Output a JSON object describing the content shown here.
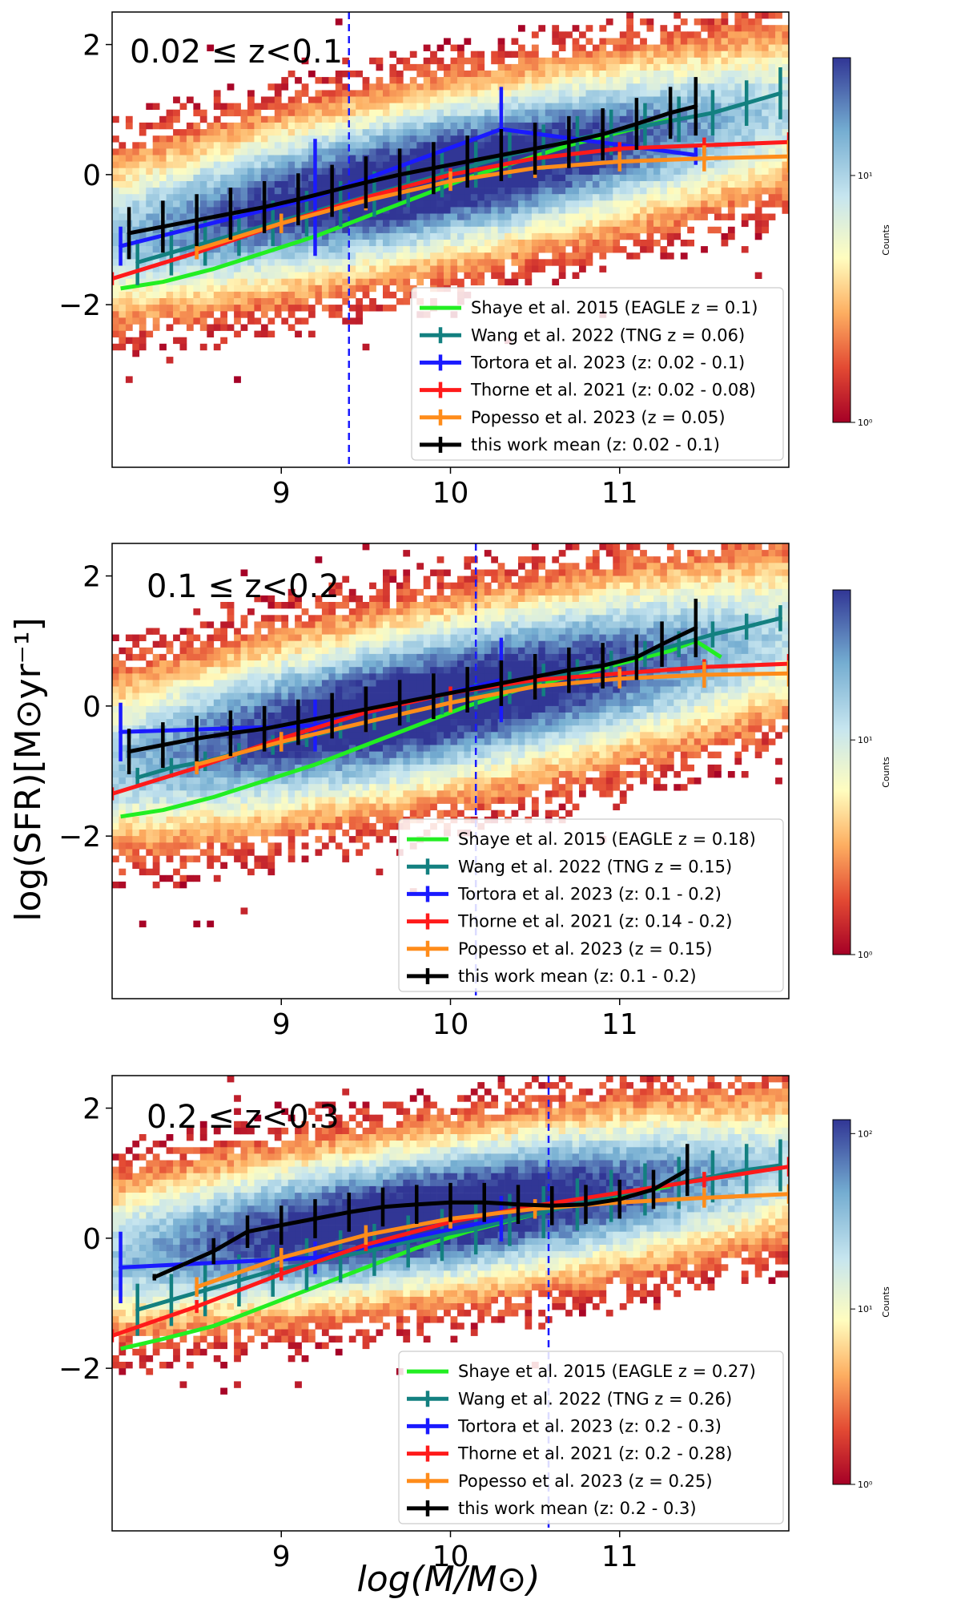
{
  "chart_data": [
    {
      "type": "scatter",
      "panel_label": "0.02 ≤ z<0.1",
      "xlim": [
        8,
        12
      ],
      "ylim": [
        -4.5,
        2.5
      ],
      "xticks": [
        9,
        10,
        11
      ],
      "yticks": [
        -2,
        0,
        2
      ],
      "xtick_labels": [
        "9",
        "10",
        "11"
      ],
      "ytick_labels": [
        "−2",
        "0",
        "2"
      ],
      "vline_x": 9.4,
      "cbar": {
        "label": "Counts",
        "ticks": [
          "10⁰",
          "10¹"
        ],
        "max": 30
      },
      "density": {
        "slope": 0.5,
        "intercept": -5.0,
        "width": 0.85
      },
      "series": [
        {
          "name": "Shaye et al. 2015 (EAGLE z = 0.1)",
          "color": "#22ee22",
          "x": [
            8.05,
            8.3,
            8.6,
            8.9,
            9.2,
            9.5,
            9.8,
            10.1,
            10.4,
            10.7,
            11.0,
            11.3
          ],
          "y": [
            -1.75,
            -1.65,
            -1.45,
            -1.2,
            -0.95,
            -0.65,
            -0.35,
            -0.05,
            0.2,
            0.45,
            0.65,
            0.85
          ],
          "err": []
        },
        {
          "name": "Wang et al. 2022 (TNG z = 0.06)",
          "color": "#138080",
          "x": [
            8.15,
            8.35,
            8.55,
            8.75,
            8.95,
            9.15,
            9.35,
            9.55,
            9.75,
            9.95,
            10.15,
            10.35,
            10.55,
            10.75,
            10.95,
            11.15,
            11.35,
            11.55,
            11.75,
            11.95
          ],
          "y": [
            -1.35,
            -1.2,
            -1.05,
            -0.9,
            -0.75,
            -0.6,
            -0.45,
            -0.3,
            -0.15,
            0.0,
            0.15,
            0.3,
            0.42,
            0.55,
            0.65,
            0.75,
            0.85,
            0.95,
            1.1,
            1.25
          ],
          "err": [
            0.35,
            0.35,
            0.35,
            0.35,
            0.35,
            0.35,
            0.35,
            0.35,
            0.35,
            0.35,
            0.35,
            0.35,
            0.35,
            0.35,
            0.35,
            0.35,
            0.35,
            0.35,
            0.35,
            0.4
          ]
        },
        {
          "name": "Tortora et al. 2023 (z: 0.02 - 0.1)",
          "color": "#1a1aff",
          "x": [
            8.05,
            9.2,
            10.3,
            11.45
          ],
          "y": [
            -1.1,
            -0.35,
            0.7,
            0.3
          ],
          "err": [
            0.3,
            0.9,
            0.65,
            0.15
          ]
        },
        {
          "name": "Thorne et al. 2021 (z: 0.02 - 0.08)",
          "color": "#ff1a1a",
          "x": [
            8.0,
            8.5,
            9.0,
            9.5,
            10.0,
            10.5,
            11.0,
            11.5,
            12.0
          ],
          "y": [
            -1.6,
            -1.2,
            -0.75,
            -0.35,
            0.0,
            0.25,
            0.4,
            0.45,
            0.5
          ],
          "err": [
            0.1,
            0.1,
            0.1,
            0.1,
            0.1,
            0.1,
            0.1,
            0.12,
            0.15
          ]
        },
        {
          "name": "Popesso et al. 2023 (z = 0.05)",
          "color": "#ff8c1a",
          "x": [
            8.5,
            9.0,
            9.5,
            10.0,
            10.5,
            11.0,
            11.5,
            12.0
          ],
          "y": [
            -1.15,
            -0.75,
            -0.4,
            -0.1,
            0.1,
            0.2,
            0.25,
            0.28
          ],
          "err": [
            0.15,
            0.15,
            0.15,
            0.15,
            0.15,
            0.15,
            0.2,
            0.25
          ]
        },
        {
          "name": "this work mean (z: 0.02 - 0.1)",
          "color": "#000000",
          "x": [
            8.1,
            8.3,
            8.5,
            8.7,
            8.9,
            9.1,
            9.3,
            9.5,
            9.7,
            9.9,
            10.1,
            10.3,
            10.5,
            10.7,
            10.9,
            11.1,
            11.3,
            11.45
          ],
          "y": [
            -0.9,
            -0.8,
            -0.7,
            -0.6,
            -0.5,
            -0.38,
            -0.25,
            -0.12,
            0.0,
            0.1,
            0.2,
            0.3,
            0.4,
            0.5,
            0.62,
            0.78,
            0.95,
            1.05
          ],
          "err": [
            0.4,
            0.4,
            0.4,
            0.4,
            0.4,
            0.4,
            0.4,
            0.4,
            0.4,
            0.4,
            0.4,
            0.4,
            0.4,
            0.4,
            0.4,
            0.4,
            0.4,
            0.45
          ]
        }
      ]
    },
    {
      "type": "scatter",
      "panel_label": "0.1 ≤ z<0.2",
      "xlim": [
        8,
        12
      ],
      "ylim": [
        -4.5,
        2.5
      ],
      "xticks": [
        9,
        10,
        11
      ],
      "yticks": [
        -2,
        0,
        2
      ],
      "xtick_labels": [
        "9",
        "10",
        "11"
      ],
      "ytick_labels": [
        "−2",
        "0",
        "2"
      ],
      "vline_x": 10.15,
      "cbar": {
        "label": "Counts",
        "ticks": [
          "10⁰",
          "10¹"
        ],
        "max": 50
      },
      "density": {
        "slope": 0.5,
        "intercept": -4.9,
        "width": 0.9
      },
      "series": [
        {
          "name": "Shaye et al. 2015 (EAGLE z = 0.18)",
          "color": "#22ee22",
          "x": [
            8.05,
            8.3,
            8.6,
            8.9,
            9.2,
            9.5,
            9.8,
            10.1,
            10.4,
            10.7,
            11.0,
            11.3,
            11.45,
            11.6
          ],
          "y": [
            -1.7,
            -1.6,
            -1.4,
            -1.15,
            -0.9,
            -0.6,
            -0.3,
            0.0,
            0.25,
            0.45,
            0.65,
            0.85,
            1.0,
            0.75
          ],
          "err": []
        },
        {
          "name": "Wang et al. 2022 (TNG z = 0.15)",
          "color": "#138080",
          "x": [
            8.15,
            8.35,
            8.55,
            8.75,
            8.95,
            9.15,
            9.35,
            9.55,
            9.75,
            9.95,
            10.15,
            10.35,
            10.55,
            10.75,
            10.95,
            11.15,
            11.35,
            11.55,
            11.75,
            11.95
          ],
          "y": [
            -1.1,
            -0.95,
            -0.85,
            -0.72,
            -0.6,
            -0.48,
            -0.35,
            -0.22,
            -0.1,
            0.02,
            0.15,
            0.28,
            0.4,
            0.52,
            0.65,
            0.8,
            0.95,
            1.1,
            1.22,
            1.35
          ],
          "err": [
            0.15,
            0.15,
            0.15,
            0.15,
            0.15,
            0.15,
            0.15,
            0.15,
            0.15,
            0.15,
            0.2,
            0.25,
            0.25,
            0.2,
            0.2,
            0.2,
            0.2,
            0.2,
            0.2,
            0.2
          ]
        },
        {
          "name": "Tortora et al. 2023 (z: 0.1 - 0.2)",
          "color": "#1a1aff",
          "x": [
            8.05,
            9.2,
            10.3
          ],
          "y": [
            -0.4,
            -0.3,
            0.4
          ],
          "err": [
            0.45,
            0.4,
            0.65
          ]
        },
        {
          "name": "Thorne et al. 2021 (z: 0.14 - 0.2)",
          "color": "#ff1a1a",
          "x": [
            8.0,
            8.5,
            9.0,
            9.5,
            10.0,
            10.5,
            11.0,
            11.5,
            12.0
          ],
          "y": [
            -1.35,
            -0.95,
            -0.5,
            -0.1,
            0.2,
            0.4,
            0.5,
            0.6,
            0.65
          ],
          "err": [
            0.1,
            0.1,
            0.1,
            0.1,
            0.1,
            0.1,
            0.1,
            0.12,
            0.15
          ]
        },
        {
          "name": "Popesso et al. 2023 (z = 0.15)",
          "color": "#ff8c1a",
          "x": [
            8.5,
            9.0,
            9.5,
            10.0,
            10.5,
            11.0,
            11.5,
            12.0
          ],
          "y": [
            -0.9,
            -0.55,
            -0.25,
            0.05,
            0.3,
            0.42,
            0.48,
            0.5
          ],
          "err": [
            0.15,
            0.15,
            0.15,
            0.15,
            0.15,
            0.15,
            0.2,
            0.2
          ]
        },
        {
          "name": "this work mean (z: 0.1 - 0.2)",
          "color": "#000000",
          "x": [
            8.1,
            8.3,
            8.5,
            8.7,
            8.9,
            9.1,
            9.3,
            9.5,
            9.7,
            9.9,
            10.1,
            10.3,
            10.5,
            10.7,
            10.9,
            11.1,
            11.25,
            11.45
          ],
          "y": [
            -0.7,
            -0.6,
            -0.5,
            -0.42,
            -0.35,
            -0.25,
            -0.15,
            -0.05,
            0.05,
            0.15,
            0.25,
            0.35,
            0.45,
            0.55,
            0.62,
            0.75,
            0.95,
            1.2
          ],
          "err": [
            0.35,
            0.35,
            0.35,
            0.35,
            0.35,
            0.35,
            0.35,
            0.35,
            0.35,
            0.35,
            0.35,
            0.35,
            0.35,
            0.35,
            0.35,
            0.35,
            0.35,
            0.45
          ]
        }
      ]
    },
    {
      "type": "scatter",
      "panel_label": "0.2 ≤ z<0.3",
      "xlim": [
        8,
        12
      ],
      "ylim": [
        -4.5,
        2.5
      ],
      "xticks": [
        9,
        10,
        11
      ],
      "yticks": [
        -2,
        0,
        2
      ],
      "xtick_labels": [
        "9",
        "10",
        "11"
      ],
      "ytick_labels": [
        "−2",
        "0",
        "2"
      ],
      "vline_x": 10.58,
      "cbar": {
        "label": "Counts",
        "ticks": [
          "10⁰",
          "10¹",
          "10²"
        ],
        "max": 120
      },
      "density": {
        "slope": 0.35,
        "intercept": -3.1,
        "width": 0.8
      },
      "series": [
        {
          "name": "Shaye et al. 2015 (EAGLE z = 0.27)",
          "color": "#22ee22",
          "x": [
            8.05,
            8.3,
            8.6,
            8.9,
            9.2,
            9.5,
            9.8,
            10.1,
            10.4,
            10.7,
            11.0,
            11.3
          ],
          "y": [
            -1.7,
            -1.55,
            -1.35,
            -1.05,
            -0.75,
            -0.45,
            -0.15,
            0.1,
            0.3,
            0.5,
            0.65,
            0.8
          ],
          "err": []
        },
        {
          "name": "Wang et al. 2022 (TNG z = 0.26)",
          "color": "#138080",
          "x": [
            8.15,
            8.35,
            8.55,
            8.75,
            8.95,
            9.15,
            9.35,
            9.55,
            9.75,
            9.95,
            10.15,
            10.35,
            10.55,
            10.75,
            10.95,
            11.15,
            11.35,
            11.55,
            11.75,
            11.95
          ],
          "y": [
            -1.1,
            -0.95,
            -0.8,
            -0.65,
            -0.5,
            -0.4,
            -0.28,
            -0.18,
            -0.05,
            0.05,
            0.15,
            0.28,
            0.4,
            0.52,
            0.65,
            0.75,
            0.85,
            0.95,
            1.05,
            1.12
          ],
          "err": [
            0.4,
            0.4,
            0.4,
            0.4,
            0.4,
            0.4,
            0.4,
            0.4,
            0.4,
            0.4,
            0.4,
            0.4,
            0.4,
            0.4,
            0.4,
            0.4,
            0.4,
            0.4,
            0.4,
            0.4
          ]
        },
        {
          "name": "Tortora et al. 2023 (z: 0.2 - 0.3)",
          "color": "#1a1aff",
          "x": [
            8.05,
            9.2,
            10.3
          ],
          "y": [
            -0.45,
            -0.3,
            0.3
          ],
          "err": [
            0.55,
            0.25,
            0.35
          ]
        },
        {
          "name": "Thorne et al. 2021 (z: 0.2 - 0.28)",
          "color": "#ff1a1a",
          "x": [
            8.0,
            8.5,
            9.0,
            9.5,
            10.0,
            10.5,
            11.0,
            11.5,
            12.0
          ],
          "y": [
            -1.5,
            -1.05,
            -0.55,
            -0.1,
            0.25,
            0.5,
            0.7,
            0.9,
            1.1
          ],
          "err": [
            0.1,
            0.1,
            0.1,
            0.1,
            0.1,
            0.1,
            0.1,
            0.12,
            0.15
          ]
        },
        {
          "name": "Popesso et al. 2023 (z = 0.25)",
          "color": "#ff8c1a",
          "x": [
            8.5,
            9.0,
            9.5,
            10.0,
            10.5,
            11.0,
            11.5,
            12.0
          ],
          "y": [
            -0.75,
            -0.3,
            0.05,
            0.3,
            0.45,
            0.55,
            0.62,
            0.68
          ],
          "err": [
            0.15,
            0.15,
            0.15,
            0.15,
            0.15,
            0.15,
            0.15,
            0.15
          ]
        },
        {
          "name": "this work mean (z: 0.2 - 0.3)",
          "color": "#000000",
          "x": [
            8.25,
            8.6,
            8.8,
            9.0,
            9.2,
            9.4,
            9.6,
            9.8,
            10.0,
            10.2,
            10.4,
            10.6,
            10.8,
            11.0,
            11.2,
            11.4
          ],
          "y": [
            -0.6,
            -0.2,
            0.1,
            0.2,
            0.3,
            0.4,
            0.48,
            0.52,
            0.55,
            0.55,
            0.52,
            0.5,
            0.52,
            0.6,
            0.75,
            1.05
          ],
          "err": [
            0.05,
            0.2,
            0.25,
            0.3,
            0.3,
            0.3,
            0.3,
            0.3,
            0.3,
            0.3,
            0.3,
            0.3,
            0.3,
            0.3,
            0.3,
            0.4
          ]
        }
      ]
    }
  ],
  "shared": {
    "ylabel": "log(SFR)[M⊙yr⁻¹]",
    "xlabel": "log(M/M⊙)"
  }
}
